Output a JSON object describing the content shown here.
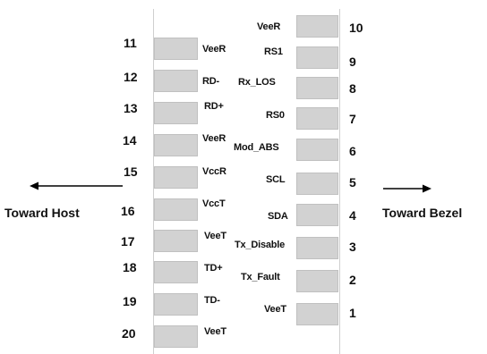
{
  "left_pins": [
    {
      "num": "11",
      "name": "VeeR"
    },
    {
      "num": "12",
      "name": "RD-"
    },
    {
      "num": "13",
      "name": "RD+"
    },
    {
      "num": "14",
      "name": "VeeR"
    },
    {
      "num": "15",
      "name": "VccR"
    },
    {
      "num": "16",
      "name": "VccT"
    },
    {
      "num": "17",
      "name": "VeeT"
    },
    {
      "num": "18",
      "name": "TD+"
    },
    {
      "num": "19",
      "name": "TD-"
    },
    {
      "num": "20",
      "name": "VeeT"
    }
  ],
  "right_pins": [
    {
      "num": "10",
      "name": "VeeR"
    },
    {
      "num": "9",
      "name": "RS1"
    },
    {
      "num": "8",
      "name": "Rx_LOS"
    },
    {
      "num": "7",
      "name": "RS0"
    },
    {
      "num": "6",
      "name": "Mod_ABS"
    },
    {
      "num": "5",
      "name": "SCL"
    },
    {
      "num": "4",
      "name": "SDA"
    },
    {
      "num": "3",
      "name": "Tx_Disable"
    },
    {
      "num": "2",
      "name": "Tx_Fault"
    },
    {
      "num": "1",
      "name": "VeeT"
    }
  ],
  "labels": {
    "toward_host": "Toward Host",
    "toward_bezel": "Toward Bezel"
  }
}
